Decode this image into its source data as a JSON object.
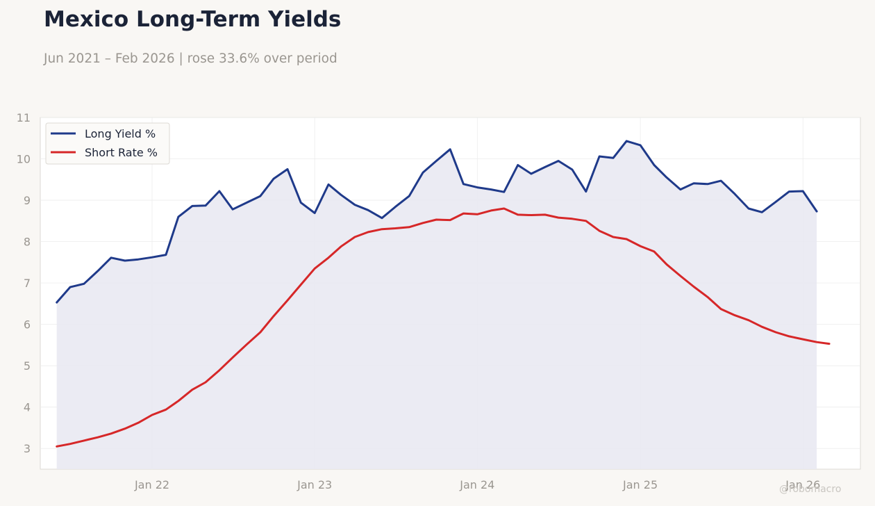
{
  "header": {
    "title": "Mexico Long-Term Yields",
    "subtitle": "Jun 2021 – Feb 2026 | rose 33.6% over period"
  },
  "watermark": "@robomacro",
  "colors": {
    "background": "#f9f7f4",
    "plot_background": "#ffffff",
    "long_yield": "#1f3a8a",
    "short_rate": "#d62728",
    "area_fill": "#e9e9f2",
    "grid": "#ececec",
    "tick_text": "#9a9690"
  },
  "chart_data": {
    "type": "line",
    "title": "Mexico Long-Term Yields",
    "subtitle": "Jun 2021 – Feb 2026 | rose 33.6% over period",
    "xlabel": "",
    "ylabel": "",
    "x_range": [
      "2021-04-25",
      "2026-05-10"
    ],
    "ylim": [
      2.5,
      11
    ],
    "yticks": [
      3,
      4,
      5,
      6,
      7,
      8,
      9,
      10,
      11
    ],
    "xticks": [
      {
        "date": "2022-01-01",
        "label": "Jan 22"
      },
      {
        "date": "2023-01-01",
        "label": "Jan 23"
      },
      {
        "date": "2024-01-01",
        "label": "Jan 24"
      },
      {
        "date": "2025-01-01",
        "label": "Jan 25"
      },
      {
        "date": "2026-01-01",
        "label": "Jan 26"
      }
    ],
    "grid": true,
    "legend_position": "top-left",
    "series": [
      {
        "name": "Long Yield %",
        "fill_area": true,
        "points": [
          [
            "2021-06-01",
            6.53
          ],
          [
            "2021-07-01",
            6.9
          ],
          [
            "2021-08-01",
            6.98
          ],
          [
            "2021-09-01",
            7.29
          ],
          [
            "2021-10-01",
            7.61
          ],
          [
            "2021-11-01",
            7.54
          ],
          [
            "2021-12-01",
            7.57
          ],
          [
            "2022-01-01",
            7.62
          ],
          [
            "2022-02-01",
            7.68
          ],
          [
            "2022-03-01",
            8.6
          ],
          [
            "2022-04-01",
            8.86
          ],
          [
            "2022-05-01",
            8.87
          ],
          [
            "2022-06-01",
            9.22
          ],
          [
            "2022-07-01",
            8.78
          ],
          [
            "2022-08-01",
            8.94
          ],
          [
            "2022-09-01",
            9.1
          ],
          [
            "2022-10-01",
            9.52
          ],
          [
            "2022-11-01",
            9.75
          ],
          [
            "2022-12-01",
            8.94
          ],
          [
            "2023-01-01",
            8.69
          ],
          [
            "2023-02-01",
            9.38
          ],
          [
            "2023-03-01",
            9.13
          ],
          [
            "2023-04-01",
            8.89
          ],
          [
            "2023-05-01",
            8.76
          ],
          [
            "2023-06-01",
            8.57
          ],
          [
            "2023-07-01",
            8.84
          ],
          [
            "2023-08-01",
            9.1
          ],
          [
            "2023-09-01",
            9.67
          ],
          [
            "2023-10-01",
            9.95
          ],
          [
            "2023-11-01",
            10.23
          ],
          [
            "2023-12-01",
            9.39
          ],
          [
            "2024-01-01",
            9.31
          ],
          [
            "2024-02-01",
            9.26
          ],
          [
            "2024-03-01",
            9.2
          ],
          [
            "2024-04-01",
            9.85
          ],
          [
            "2024-05-01",
            9.64
          ],
          [
            "2024-06-01",
            9.8
          ],
          [
            "2024-07-01",
            9.95
          ],
          [
            "2024-08-01",
            9.74
          ],
          [
            "2024-09-01",
            9.21
          ],
          [
            "2024-10-01",
            10.06
          ],
          [
            "2024-11-01",
            10.02
          ],
          [
            "2024-12-01",
            10.43
          ],
          [
            "2025-01-01",
            10.33
          ],
          [
            "2025-02-01",
            9.85
          ],
          [
            "2025-03-01",
            9.55
          ],
          [
            "2025-04-01",
            9.26
          ],
          [
            "2025-05-01",
            9.41
          ],
          [
            "2025-06-01",
            9.39
          ],
          [
            "2025-07-01",
            9.47
          ],
          [
            "2025-08-01",
            9.15
          ],
          [
            "2025-09-01",
            8.8
          ],
          [
            "2025-10-01",
            8.71
          ],
          [
            "2025-11-01",
            8.96
          ],
          [
            "2025-12-01",
            9.21
          ],
          [
            "2026-01-01",
            9.22
          ],
          [
            "2026-02-01",
            8.73
          ]
        ]
      },
      {
        "name": "Short Rate %",
        "fill_area": false,
        "points": [
          [
            "2021-06-01",
            3.05
          ],
          [
            "2021-07-01",
            3.11
          ],
          [
            "2021-08-01",
            3.19
          ],
          [
            "2021-09-01",
            3.27
          ],
          [
            "2021-10-01",
            3.36
          ],
          [
            "2021-11-01",
            3.48
          ],
          [
            "2021-12-01",
            3.62
          ],
          [
            "2022-01-01",
            3.81
          ],
          [
            "2022-02-01",
            3.94
          ],
          [
            "2022-03-01",
            4.15
          ],
          [
            "2022-04-01",
            4.42
          ],
          [
            "2022-05-01",
            4.6
          ],
          [
            "2022-06-01",
            4.89
          ],
          [
            "2022-07-01",
            5.2
          ],
          [
            "2022-08-01",
            5.51
          ],
          [
            "2022-09-01",
            5.81
          ],
          [
            "2022-10-01",
            6.2
          ],
          [
            "2022-11-01",
            6.58
          ],
          [
            "2022-12-01",
            6.96
          ],
          [
            "2023-01-01",
            7.35
          ],
          [
            "2023-02-01",
            7.61
          ],
          [
            "2023-03-01",
            7.88
          ],
          [
            "2023-04-01",
            8.11
          ],
          [
            "2023-05-01",
            8.23
          ],
          [
            "2023-06-01",
            8.3
          ],
          [
            "2023-07-01",
            8.32
          ],
          [
            "2023-08-01",
            8.35
          ],
          [
            "2023-09-01",
            8.45
          ],
          [
            "2023-10-01",
            8.53
          ],
          [
            "2023-11-01",
            8.52
          ],
          [
            "2023-12-01",
            8.68
          ],
          [
            "2024-01-01",
            8.66
          ],
          [
            "2024-02-01",
            8.75
          ],
          [
            "2024-03-01",
            8.8
          ],
          [
            "2024-04-01",
            8.65
          ],
          [
            "2024-05-01",
            8.64
          ],
          [
            "2024-06-01",
            8.65
          ],
          [
            "2024-07-01",
            8.58
          ],
          [
            "2024-08-01",
            8.55
          ],
          [
            "2024-09-01",
            8.5
          ],
          [
            "2024-10-01",
            8.26
          ],
          [
            "2024-11-01",
            8.11
          ],
          [
            "2024-12-01",
            8.06
          ],
          [
            "2025-01-01",
            7.89
          ],
          [
            "2025-02-01",
            7.76
          ],
          [
            "2025-03-01",
            7.45
          ],
          [
            "2025-04-01",
            7.17
          ],
          [
            "2025-05-01",
            6.91
          ],
          [
            "2025-06-01",
            6.66
          ],
          [
            "2025-07-01",
            6.37
          ],
          [
            "2025-08-01",
            6.22
          ],
          [
            "2025-09-01",
            6.1
          ],
          [
            "2025-10-01",
            5.94
          ],
          [
            "2025-11-01",
            5.81
          ],
          [
            "2025-12-01",
            5.71
          ],
          [
            "2026-01-01",
            5.64
          ],
          [
            "2026-02-01",
            5.57
          ],
          [
            "2026-03-01",
            5.53
          ]
        ]
      }
    ]
  }
}
